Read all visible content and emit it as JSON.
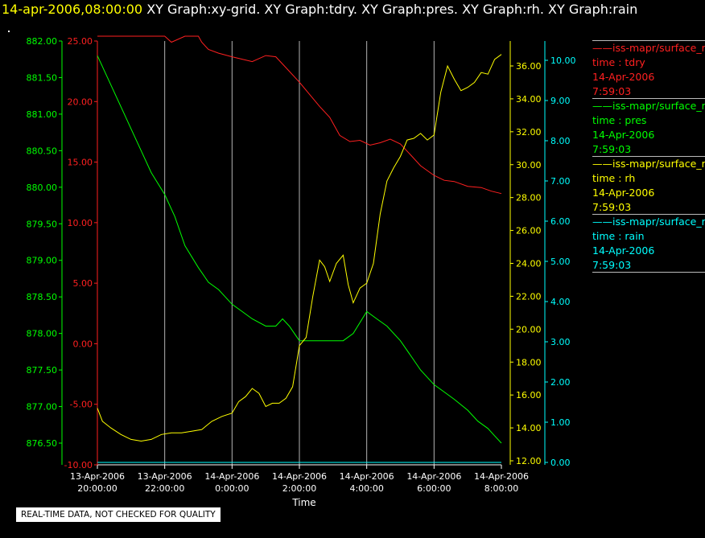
{
  "header": {
    "datetime": "14-apr-2006,08:00:00",
    "titles": "XY Graph:xy-grid.  XY Graph:tdry.  XY Graph:pres.  XY Graph:rh.  XY Graph:rain"
  },
  "disclaimer": "REAL-TIME DATA, NOT CHECKED FOR QUALITY",
  "colors": {
    "tdry": "#ff2020",
    "pres": "#00ff00",
    "rh": "#ffff00",
    "rain": "#00ffff",
    "grid": "#b4b4b4",
    "text": "#ffffff"
  },
  "legend": [
    {
      "name": "iss-mapr/surface_m",
      "var": "time : tdry",
      "date": "14-Apr-2006",
      "time": "7:59:03",
      "color": "#ff2020"
    },
    {
      "name": "iss-mapr/surface_m",
      "var": "time : pres",
      "date": "14-Apr-2006",
      "time": "7:59:03",
      "color": "#00ff00"
    },
    {
      "name": "iss-mapr/surface_m",
      "var": "time : rh",
      "date": "14-Apr-2006",
      "time": "7:59:03",
      "color": "#ffff00"
    },
    {
      "name": "iss-mapr/surface_m",
      "var": "time : rain",
      "date": "14-Apr-2006",
      "time": "7:59:03",
      "color": "#00ffff"
    }
  ],
  "chart_data": {
    "type": "line",
    "xlabel": "Time",
    "x_ticks": [
      {
        "line1": "13-Apr-2006",
        "line2": "20:00:00",
        "hours": 0
      },
      {
        "line1": "13-Apr-2006",
        "line2": "22:00:00",
        "hours": 2
      },
      {
        "line1": "14-Apr-2006",
        "line2": "0:00:00",
        "hours": 4
      },
      {
        "line1": "14-Apr-2006",
        "line2": "2:00:00",
        "hours": 6
      },
      {
        "line1": "14-Apr-2006",
        "line2": "4:00:00",
        "hours": 8
      },
      {
        "line1": "14-Apr-2006",
        "line2": "6:00:00",
        "hours": 10
      },
      {
        "line1": "14-Apr-2006",
        "line2": "8:00:00",
        "hours": 12
      }
    ],
    "xlim_hours": [
      0,
      12
    ],
    "grid_vertical": true,
    "axes": {
      "pres": {
        "range": [
          876.4,
          882.0
        ],
        "ticks": [
          "882.00",
          "881.50",
          "881.00",
          "880.50",
          "880.00",
          "879.50",
          "879.00",
          "878.50",
          "878.00",
          "877.50",
          "877.00",
          "876.50"
        ],
        "tick_values": [
          882.0,
          881.5,
          881.0,
          880.5,
          880.0,
          879.5,
          879.0,
          878.5,
          878.0,
          877.5,
          877.0,
          876.5
        ]
      },
      "tdry": {
        "range": [
          -10.0,
          25.0
        ],
        "ticks": [
          "25.00",
          "20.00",
          "15.00",
          "10.00",
          "5.00",
          "0.00",
          "-5.00",
          "-10.00"
        ],
        "tick_values": [
          25,
          20,
          15,
          10,
          5,
          0,
          -5,
          -10
        ]
      },
      "rh": {
        "range": [
          12.0,
          38.0
        ],
        "ticks": [
          "36.00",
          "34.00",
          "32.00",
          "30.00",
          "28.00",
          "26.00",
          "24.00",
          "22.00",
          "20.00",
          "18.00",
          "16.00",
          "14.00",
          "12.00"
        ],
        "tick_values": [
          36,
          34,
          32,
          30,
          28,
          26,
          24,
          22,
          20,
          18,
          16,
          14,
          12
        ]
      },
      "rain": {
        "range": [
          0.0,
          10.4
        ],
        "ticks": [
          "10.00",
          "9.00",
          "8.00",
          "7.00",
          "6.00",
          "5.00",
          "4.00",
          "3.00",
          "2.00",
          "1.00",
          "0.00"
        ],
        "tick_values": [
          10,
          9,
          8,
          7,
          6,
          5,
          4,
          3,
          2,
          1,
          0
        ]
      }
    },
    "series": [
      {
        "name": "time : tdry",
        "axis": "tdry",
        "x": [
          0.0,
          0.5,
          1.0,
          1.5,
          2.0,
          2.2,
          2.6,
          2.8,
          3.0,
          3.1,
          3.3,
          3.6,
          4.0,
          4.3,
          4.6,
          5.0,
          5.3,
          5.6,
          6.0,
          6.3,
          6.6,
          6.9,
          7.2,
          7.5,
          7.8,
          8.1,
          8.4,
          8.7,
          9.0,
          9.3,
          9.6,
          10.0,
          10.3,
          10.6,
          11.0,
          11.4,
          11.7,
          12.0
        ],
        "values": [
          25.9,
          25.9,
          25.9,
          25.9,
          25.9,
          24.9,
          25.9,
          25.9,
          25.9,
          24.9,
          24.3,
          24.0,
          23.7,
          23.5,
          23.3,
          23.8,
          23.7,
          22.8,
          21.6,
          20.6,
          19.6,
          18.7,
          17.2,
          16.7,
          16.8,
          16.4,
          16.6,
          16.9,
          16.5,
          15.6,
          14.7,
          13.9,
          13.5,
          13.4,
          13.0,
          12.9,
          12.6,
          12.4
        ]
      },
      {
        "name": "time : pres",
        "axis": "pres",
        "x": [
          0.0,
          0.2,
          0.5,
          0.8,
          1.0,
          1.3,
          1.6,
          2.0,
          2.3,
          2.6,
          3.0,
          3.3,
          3.6,
          4.0,
          4.3,
          4.6,
          5.0,
          5.3,
          5.5,
          5.7,
          6.0,
          6.3,
          6.6,
          7.0,
          7.3,
          7.6,
          8.0,
          8.3,
          8.6,
          9.0,
          9.3,
          9.6,
          10.0,
          10.3,
          10.6,
          11.0,
          11.3,
          11.6,
          11.8,
          12.0
        ],
        "values": [
          881.8,
          881.6,
          881.3,
          881.0,
          880.8,
          880.5,
          880.2,
          879.9,
          879.6,
          879.2,
          878.9,
          878.7,
          878.6,
          878.4,
          878.3,
          878.2,
          878.1,
          878.1,
          878.2,
          878.1,
          877.9,
          877.9,
          877.9,
          877.9,
          877.9,
          878.0,
          878.3,
          878.2,
          878.1,
          877.9,
          877.7,
          877.5,
          877.3,
          877.2,
          877.1,
          876.95,
          876.8,
          876.7,
          876.6,
          876.5
        ]
      },
      {
        "name": "time : rh",
        "axis": "rh",
        "x": [
          0.0,
          0.15,
          0.4,
          0.7,
          1.0,
          1.3,
          1.6,
          1.9,
          2.2,
          2.5,
          2.8,
          3.1,
          3.4,
          3.7,
          4.0,
          4.2,
          4.4,
          4.6,
          4.8,
          5.0,
          5.2,
          5.4,
          5.6,
          5.8,
          6.0,
          6.2,
          6.4,
          6.6,
          6.75,
          6.9,
          7.1,
          7.3,
          7.45,
          7.6,
          7.8,
          8.0,
          8.2,
          8.4,
          8.6,
          8.8,
          9.0,
          9.2,
          9.4,
          9.6,
          9.8,
          10.0,
          10.2,
          10.4,
          10.6,
          10.8,
          11.0,
          11.2,
          11.4,
          11.6,
          11.8,
          12.0
        ],
        "values": [
          15.2,
          14.4,
          14.0,
          13.6,
          13.3,
          13.2,
          13.3,
          13.6,
          13.7,
          13.7,
          13.8,
          13.9,
          14.4,
          14.7,
          14.9,
          15.6,
          15.9,
          16.4,
          16.1,
          15.3,
          15.5,
          15.5,
          15.8,
          16.5,
          19.0,
          19.5,
          22.0,
          24.2,
          23.8,
          22.9,
          24.0,
          24.5,
          22.7,
          21.6,
          22.5,
          22.8,
          24.0,
          27.0,
          29.0,
          29.8,
          30.5,
          31.5,
          31.6,
          31.9,
          31.5,
          31.8,
          34.4,
          36.0,
          35.2,
          34.5,
          34.7,
          35.0,
          35.6,
          35.5,
          36.4,
          36.7
        ]
      },
      {
        "name": "time : rain",
        "axis": "rain",
        "x": [
          0.0,
          12.0
        ],
        "values": [
          0.0,
          0.0
        ]
      }
    ]
  }
}
